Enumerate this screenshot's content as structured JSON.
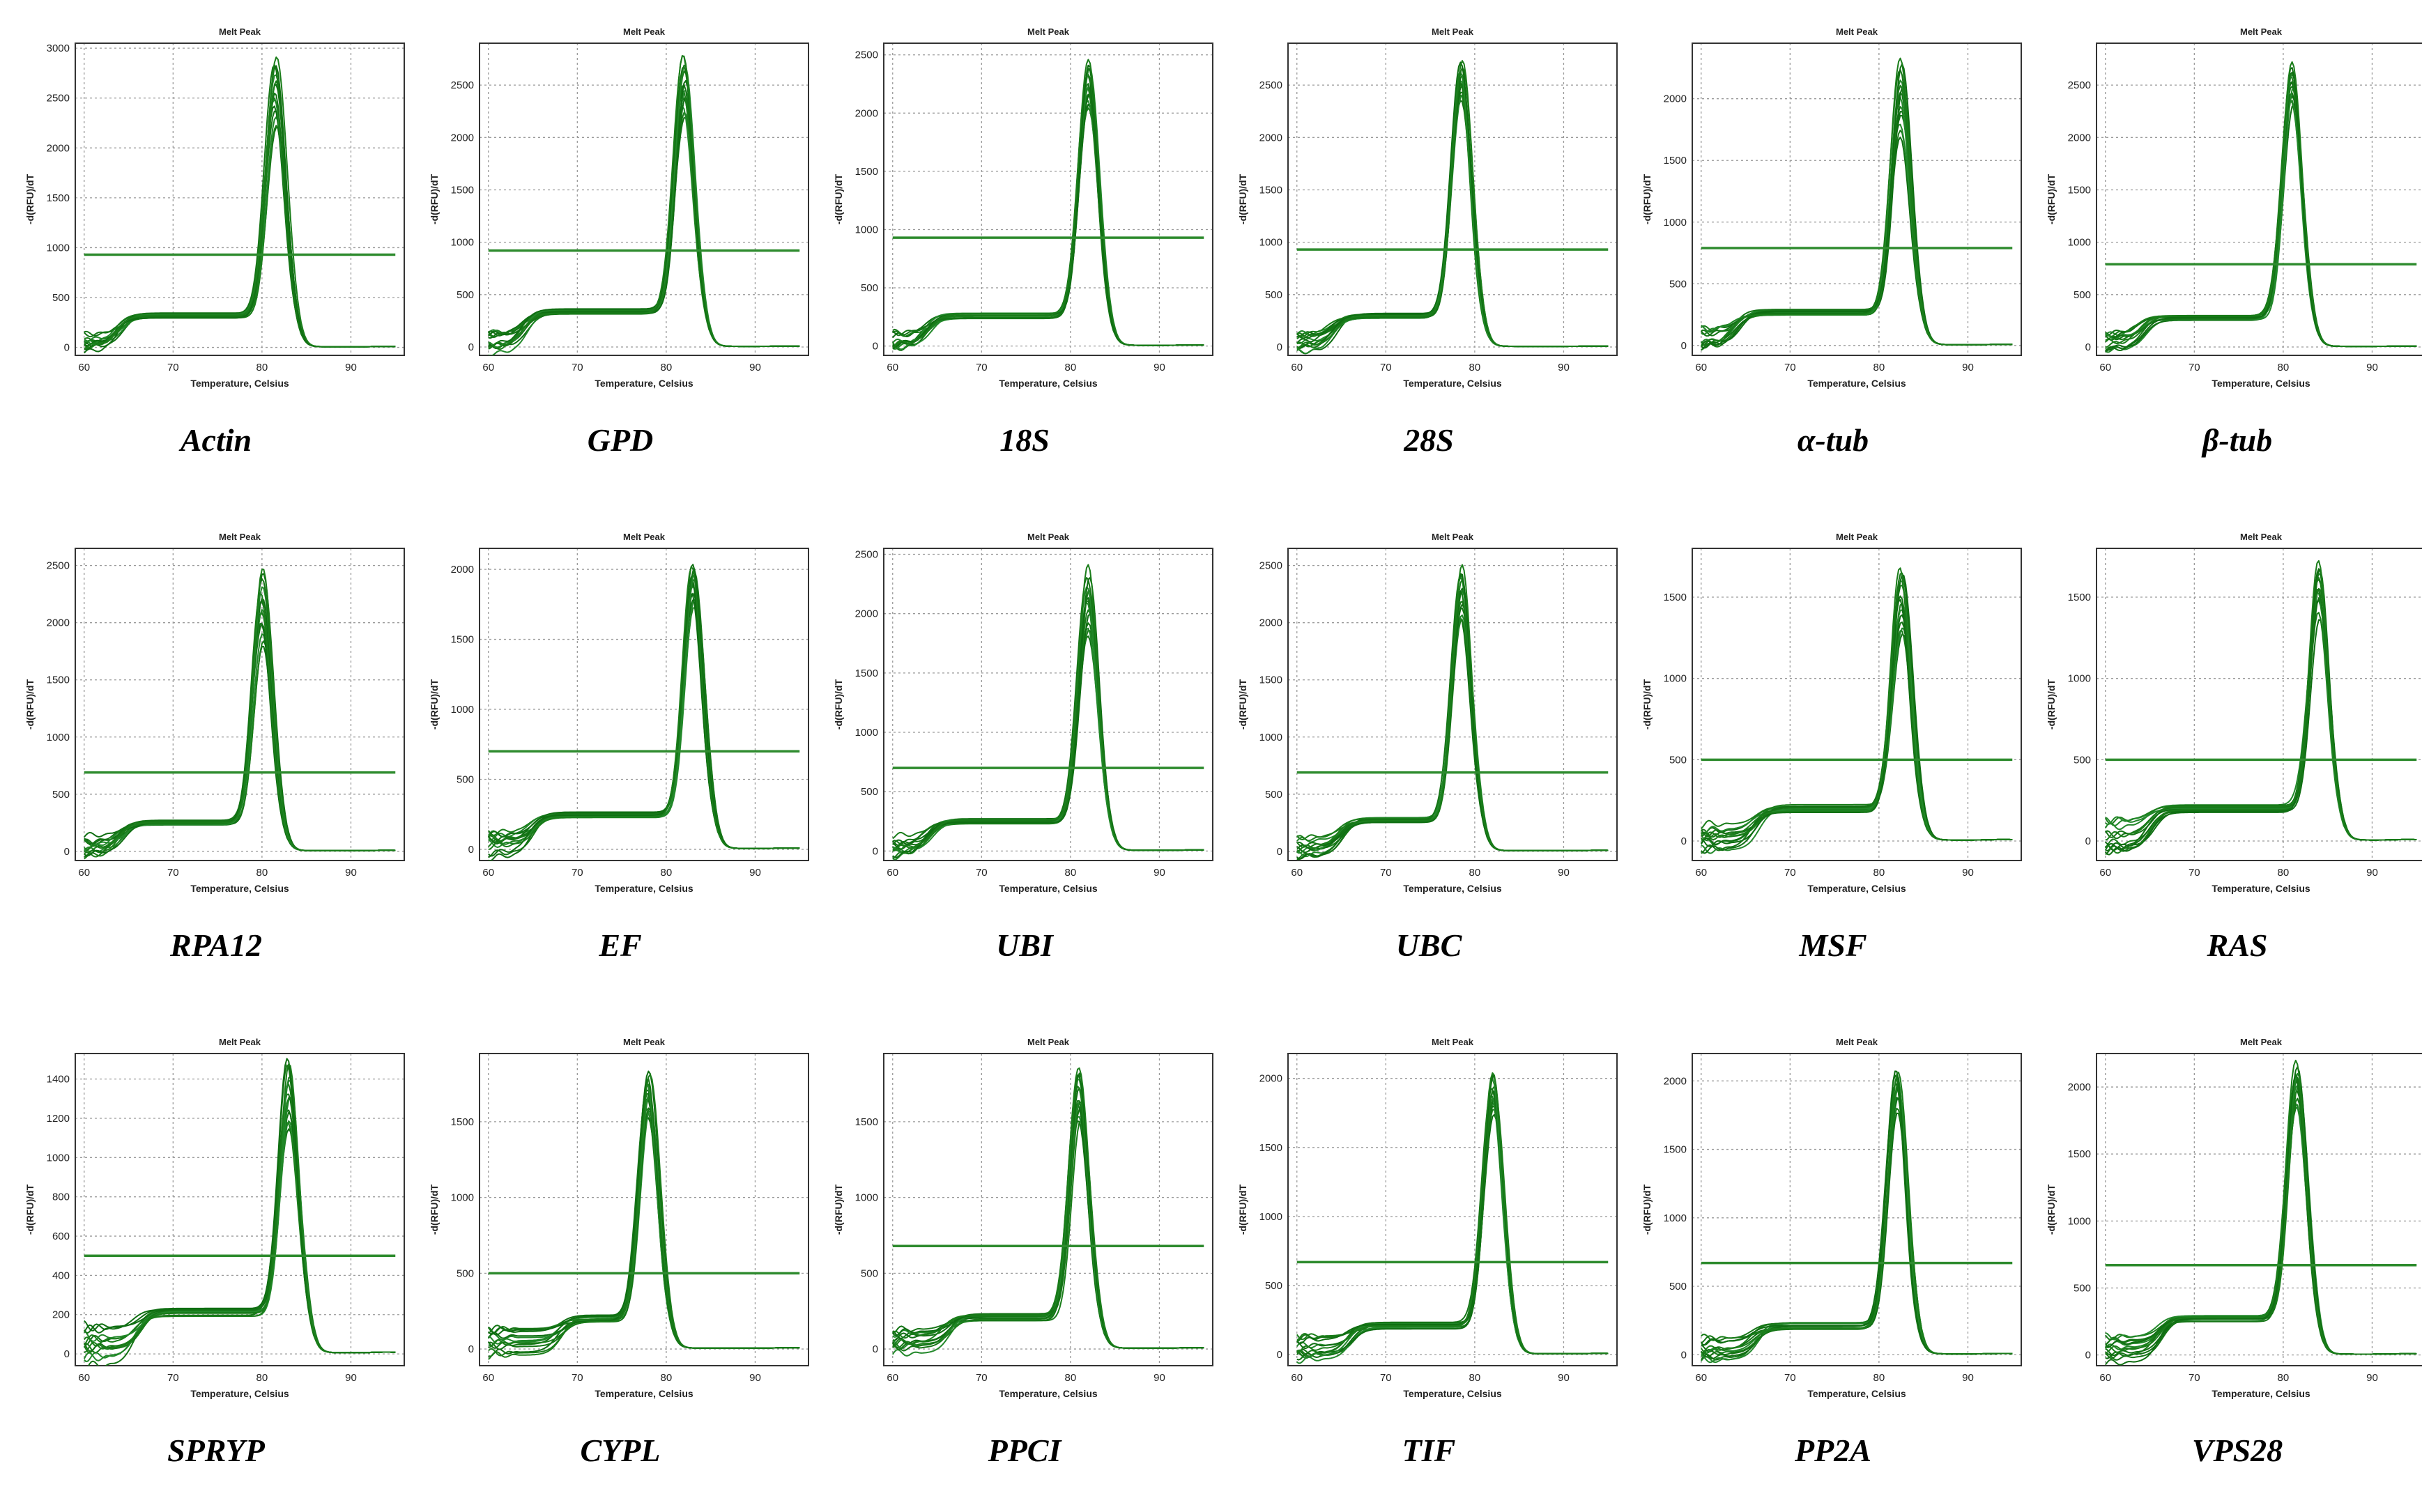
{
  "figure": {
    "panel_title": "Melt Peak",
    "xlabel": "Temperature, Celsius",
    "ylabel": "-d(RFU)/dT",
    "line_color": "#1a7d1a",
    "threshold_color": "#2e8b2e"
  },
  "chart_data": [
    {
      "type": "line",
      "gene": "Actin",
      "title": "Melt Peak",
      "xlabel": "Temperature, Celsius",
      "ylabel": "-d(RFU)/dT",
      "xticks": [
        60,
        70,
        80,
        90
      ],
      "xlim": [
        59,
        96
      ],
      "yticks": [
        0,
        500,
        1000,
        1500,
        2000,
        2500,
        3000
      ],
      "ylim": [
        -80,
        3050
      ],
      "threshold": 930,
      "peak_temp": 81.5,
      "peak_max": 2900,
      "peak_min": 2200,
      "plateau": 320,
      "plateau_start": 64,
      "curve_count": 14
    },
    {
      "type": "line",
      "gene": "GPD",
      "title": "Melt Peak",
      "xlabel": "Temperature, Celsius",
      "ylabel": "-d(RFU)/dT",
      "xticks": [
        60,
        70,
        80,
        90
      ],
      "xlim": [
        59,
        96
      ],
      "yticks": [
        0,
        500,
        1000,
        1500,
        2000,
        2500
      ],
      "ylim": [
        -80,
        2900
      ],
      "threshold": 920,
      "peak_temp": 82.0,
      "peak_max": 2800,
      "peak_min": 2200,
      "plateau": 340,
      "plateau_start": 64,
      "curve_count": 14
    },
    {
      "type": "line",
      "gene": "18S",
      "title": "Melt Peak",
      "xlabel": "Temperature, Celsius",
      "ylabel": "-d(RFU)/dT",
      "xticks": [
        60,
        70,
        80,
        90
      ],
      "xlim": [
        59,
        96
      ],
      "yticks": [
        0,
        500,
        1000,
        1500,
        2000,
        2500
      ],
      "ylim": [
        -80,
        2600
      ],
      "threshold": 930,
      "peak_temp": 82.0,
      "peak_max": 2450,
      "peak_min": 2050,
      "plateau": 260,
      "plateau_start": 64,
      "curve_count": 14
    },
    {
      "type": "line",
      "gene": "28S",
      "title": "Melt Peak",
      "xlabel": "Temperature, Celsius",
      "ylabel": "-d(RFU)/dT",
      "xticks": [
        60,
        70,
        80,
        90
      ],
      "xlim": [
        59,
        96
      ],
      "yticks": [
        0,
        500,
        1000,
        1500,
        2000,
        2500
      ],
      "ylim": [
        -80,
        2900
      ],
      "threshold": 930,
      "peak_temp": 78.5,
      "peak_max": 2750,
      "peak_min": 2350,
      "plateau": 300,
      "plateau_start": 64,
      "curve_count": 14
    },
    {
      "type": "line",
      "gene": "α-tub",
      "title": "Melt Peak",
      "xlabel": "Temperature, Celsius",
      "ylabel": "-d(RFU)/dT",
      "xticks": [
        60,
        70,
        80,
        90
      ],
      "xlim": [
        59,
        96
      ],
      "yticks": [
        0,
        500,
        1000,
        1500,
        2000
      ],
      "ylim": [
        -80,
        2450
      ],
      "threshold": 790,
      "peak_temp": 82.5,
      "peak_max": 2330,
      "peak_min": 1700,
      "plateau": 270,
      "plateau_start": 64,
      "curve_count": 14
    },
    {
      "type": "line",
      "gene": "β-tub",
      "title": "Melt Peak",
      "xlabel": "Temperature, Celsius",
      "ylabel": "-d(RFU)/dT",
      "xticks": [
        60,
        70,
        80,
        90
      ],
      "xlim": [
        59,
        96
      ],
      "yticks": [
        0,
        500,
        1000,
        1500,
        2000,
        2500
      ],
      "ylim": [
        -80,
        2900
      ],
      "threshold": 790,
      "peak_temp": 81.0,
      "peak_max": 2700,
      "peak_min": 2300,
      "plateau": 280,
      "plateau_start": 64,
      "curve_count": 14
    },
    {
      "type": "line",
      "gene": "RPA12",
      "title": "Melt Peak",
      "xlabel": "Temperature, Celsius",
      "ylabel": "-d(RFU)/dT",
      "xticks": [
        60,
        70,
        80,
        90
      ],
      "xlim": [
        59,
        96
      ],
      "yticks": [
        0,
        500,
        1000,
        1500,
        2000,
        2500
      ],
      "ylim": [
        -80,
        2650
      ],
      "threshold": 690,
      "peak_temp": 80.0,
      "peak_max": 2480,
      "peak_min": 1800,
      "plateau": 250,
      "plateau_start": 64,
      "curve_count": 14
    },
    {
      "type": "line",
      "gene": "EF",
      "title": "Melt Peak",
      "xlabel": "Temperature, Celsius",
      "ylabel": "-d(RFU)/dT",
      "xticks": [
        60,
        70,
        80,
        90
      ],
      "xlim": [
        59,
        96
      ],
      "yticks": [
        0,
        500,
        1000,
        1500,
        2000
      ],
      "ylim": [
        -80,
        2150
      ],
      "threshold": 700,
      "peak_temp": 83.0,
      "peak_max": 2050,
      "peak_min": 1750,
      "plateau": 250,
      "plateau_start": 65,
      "curve_count": 14
    },
    {
      "type": "line",
      "gene": "UBI",
      "title": "Melt Peak",
      "xlabel": "Temperature, Celsius",
      "ylabel": "-d(RFU)/dT",
      "xticks": [
        60,
        70,
        80,
        90
      ],
      "xlim": [
        59,
        96
      ],
      "yticks": [
        0,
        500,
        1000,
        1500,
        2000,
        2500
      ],
      "ylim": [
        -80,
        2550
      ],
      "threshold": 700,
      "peak_temp": 82.0,
      "peak_max": 2380,
      "peak_min": 1800,
      "plateau": 250,
      "plateau_start": 64,
      "curve_count": 14
    },
    {
      "type": "line",
      "gene": "UBC",
      "title": "Melt Peak",
      "xlabel": "Temperature, Celsius",
      "ylabel": "-d(RFU)/dT",
      "xticks": [
        60,
        70,
        80,
        90
      ],
      "xlim": [
        59,
        96
      ],
      "yticks": [
        0,
        500,
        1000,
        1500,
        2000,
        2500
      ],
      "ylim": [
        -80,
        2650
      ],
      "threshold": 690,
      "peak_temp": 78.5,
      "peak_max": 2500,
      "peak_min": 2000,
      "plateau": 270,
      "plateau_start": 65,
      "curve_count": 14
    },
    {
      "type": "line",
      "gene": "MSF",
      "title": "Melt Peak",
      "xlabel": "Temperature, Celsius",
      "ylabel": "-d(RFU)/dT",
      "xticks": [
        60,
        70,
        80,
        90
      ],
      "xlim": [
        59,
        96
      ],
      "yticks": [
        0,
        500,
        1000,
        1500
      ],
      "ylim": [
        -120,
        1800
      ],
      "threshold": 500,
      "peak_temp": 82.5,
      "peak_max": 1700,
      "peak_min": 1250,
      "plateau": 200,
      "plateau_start": 66,
      "curve_count": 14
    },
    {
      "type": "line",
      "gene": "RAS",
      "title": "Melt Peak",
      "xlabel": "Temperature, Celsius",
      "ylabel": "-d(RFU)/dT",
      "xticks": [
        60,
        70,
        80,
        90
      ],
      "xlim": [
        59,
        96
      ],
      "yticks": [
        0,
        500,
        1000,
        1500
      ],
      "ylim": [
        -120,
        1800
      ],
      "threshold": 500,
      "peak_temp": 84.0,
      "peak_max": 1720,
      "peak_min": 1400,
      "plateau": 200,
      "plateau_start": 65,
      "curve_count": 14
    },
    {
      "type": "line",
      "gene": "SPRYP",
      "title": "Melt Peak",
      "xlabel": "Temperature, Celsius",
      "ylabel": "-d(RFU)/dT",
      "xticks": [
        60,
        70,
        80,
        90
      ],
      "xlim": [
        59,
        96
      ],
      "yticks": [
        0,
        200,
        400,
        600,
        800,
        1000,
        1200,
        1400
      ],
      "ylim": [
        -60,
        1530
      ],
      "threshold": 500,
      "peak_temp": 83.0,
      "peak_max": 1500,
      "peak_min": 1150,
      "plateau": 210,
      "plateau_start": 66,
      "curve_count": 14
    },
    {
      "type": "line",
      "gene": "CYPL",
      "title": "Melt Peak",
      "xlabel": "Temperature, Celsius",
      "ylabel": "-d(RFU)/dT",
      "xticks": [
        60,
        70,
        80,
        90
      ],
      "xlim": [
        59,
        96
      ],
      "yticks": [
        0,
        500,
        1000,
        1500
      ],
      "ylim": [
        -110,
        1950
      ],
      "threshold": 500,
      "peak_temp": 78.0,
      "peak_max": 1820,
      "peak_min": 1550,
      "plateau": 200,
      "plateau_start": 68,
      "curve_count": 14
    },
    {
      "type": "line",
      "gene": "PPCI",
      "title": "Melt Peak",
      "xlabel": "Temperature, Celsius",
      "ylabel": "-d(RFU)/dT",
      "xticks": [
        60,
        70,
        80,
        90
      ],
      "xlim": [
        59,
        96
      ],
      "yticks": [
        0,
        500,
        1000,
        1500
      ],
      "ylim": [
        -110,
        1950
      ],
      "threshold": 680,
      "peak_temp": 81.0,
      "peak_max": 1840,
      "peak_min": 1500,
      "plateau": 210,
      "plateau_start": 66,
      "curve_count": 14
    },
    {
      "type": "line",
      "gene": "TIF",
      "title": "Melt Peak",
      "xlabel": "Temperature, Celsius",
      "ylabel": "-d(RFU)/dT",
      "xticks": [
        60,
        70,
        80,
        90
      ],
      "xlim": [
        59,
        96
      ],
      "yticks": [
        0,
        500,
        1000,
        1500,
        2000
      ],
      "ylim": [
        -80,
        2180
      ],
      "threshold": 670,
      "peak_temp": 82.0,
      "peak_max": 2050,
      "peak_min": 1750,
      "plateau": 210,
      "plateau_start": 66,
      "curve_count": 14
    },
    {
      "type": "line",
      "gene": "PP2A",
      "title": "Melt Peak",
      "xlabel": "Temperature, Celsius",
      "ylabel": "-d(RFU)/dT",
      "xticks": [
        60,
        70,
        80,
        90
      ],
      "xlim": [
        59,
        96
      ],
      "yticks": [
        0,
        500,
        1000,
        1500,
        2000
      ],
      "ylim": [
        -80,
        2200
      ],
      "threshold": 670,
      "peak_temp": 82.0,
      "peak_max": 2100,
      "peak_min": 1800,
      "plateau": 210,
      "plateau_start": 66,
      "curve_count": 14
    },
    {
      "type": "line",
      "gene": "VPS28",
      "title": "Melt Peak",
      "xlabel": "Temperature, Celsius",
      "ylabel": "-d(RFU)/dT",
      "xticks": [
        60,
        70,
        80,
        90
      ],
      "xlim": [
        59,
        96
      ],
      "yticks": [
        0,
        500,
        1000,
        1500,
        2000
      ],
      "ylim": [
        -80,
        2250
      ],
      "threshold": 670,
      "peak_temp": 81.5,
      "peak_max": 2170,
      "peak_min": 1850,
      "plateau": 270,
      "plateau_start": 66,
      "curve_count": 14
    }
  ]
}
